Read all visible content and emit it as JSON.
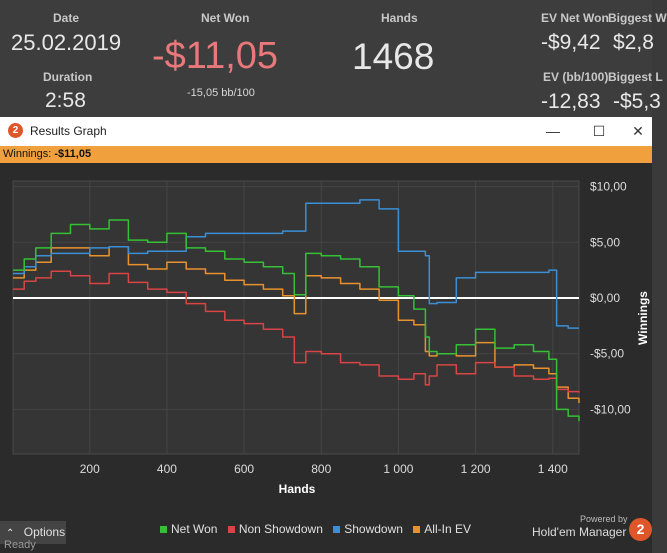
{
  "stats": {
    "date_label": "Date",
    "date_value": "25.02.2019",
    "duration_label": "Duration",
    "duration_value": "2:58",
    "netwon_label": "Net Won",
    "netwon_value": "-$11,05",
    "netwon_sub": "-15,05 bb/100",
    "hands_label": "Hands",
    "hands_value": "1468",
    "evnet_label": "EV Net Won",
    "evnet_value": "-$9,42",
    "evbb_label": "EV (bb/100)",
    "evbb_value": "-12,83",
    "biggest_win_label": "Biggest W",
    "biggest_win_value": "$2,8",
    "biggest_loss_label": "Biggest L",
    "biggest_loss_value": "-$5,3"
  },
  "window": {
    "title": "Results Graph",
    "minimize": "—",
    "maximize": "☐",
    "close": "✕",
    "winnings_label": "Winnings:",
    "winnings_value": "-$11,05"
  },
  "colors": {
    "net_won": "#35c035",
    "non_showdown": "#d94545",
    "showdown": "#3a8fd6",
    "all_in_ev": "#e8922e",
    "bar": "#f0a03c",
    "netwon_value": "#e8787a"
  },
  "chart_data": {
    "type": "line",
    "xlabel": "Hands",
    "ylabel": "Winnings",
    "xlim": [
      1,
      1468
    ],
    "ylim": [
      -14,
      10.5
    ],
    "x_ticks": [
      200,
      400,
      600,
      800,
      1000,
      1200,
      1400
    ],
    "x_tick_labels": [
      "200",
      "400",
      "600",
      "800",
      "1 000",
      "1 200",
      "1 400"
    ],
    "y_ticks": [
      10,
      5,
      0,
      -5,
      -10
    ],
    "y_tick_labels": [
      "$10,00",
      "$5,00",
      "$0,00",
      "-$5,00",
      "-$10,00"
    ],
    "grid": true,
    "legend": "bottom",
    "x": [
      0,
      30,
      60,
      100,
      150,
      200,
      250,
      300,
      350,
      400,
      450,
      500,
      550,
      600,
      650,
      700,
      730,
      760,
      800,
      850,
      900,
      950,
      1000,
      1040,
      1070,
      1080,
      1100,
      1150,
      1200,
      1250,
      1300,
      1350,
      1390,
      1410,
      1440,
      1468
    ],
    "series": [
      {
        "name": "Net Won",
        "color": "#35c035",
        "values": [
          2.5,
          3.5,
          4.5,
          5.8,
          6.6,
          6.2,
          7.0,
          5.2,
          5.0,
          5.8,
          4.5,
          4.2,
          3.5,
          3.2,
          2.8,
          2.2,
          0.3,
          4.0,
          3.8,
          3.5,
          2.8,
          1.0,
          0.2,
          -1.0,
          -3.5,
          -4.8,
          -5.0,
          -4.2,
          -2.8,
          -4.5,
          -4.2,
          -4.8,
          -5.5,
          -10.0,
          -10.6,
          -11.05
        ]
      },
      {
        "name": "Non Showdown",
        "color": "#d94545",
        "values": [
          0.8,
          1.5,
          1.8,
          2.4,
          2.0,
          1.3,
          2.2,
          1.4,
          0.8,
          0.5,
          -0.5,
          -1.2,
          -2.0,
          -2.3,
          -2.8,
          -3.5,
          -5.8,
          -4.8,
          -5.0,
          -5.8,
          -6.0,
          -7.0,
          -7.3,
          -6.8,
          -7.8,
          -7.0,
          -6.0,
          -6.8,
          -5.8,
          -6.2,
          -7.0,
          -7.3,
          -7.2,
          -8.2,
          -8.4,
          -8.5
        ]
      },
      {
        "name": "Showdown",
        "color": "#3a8fd6",
        "values": [
          2.2,
          2.8,
          3.8,
          4.0,
          4.0,
          4.5,
          4.6,
          4.0,
          4.2,
          4.2,
          5.5,
          5.8,
          5.8,
          5.8,
          5.8,
          6.0,
          6.0,
          8.5,
          8.5,
          8.5,
          8.8,
          8.0,
          4.2,
          4.2,
          3.8,
          -0.5,
          -0.4,
          1.8,
          2.3,
          2.3,
          2.3,
          2.3,
          2.5,
          -2.5,
          -2.7,
          -2.7
        ]
      },
      {
        "name": "All-In EV",
        "color": "#e8922e",
        "values": [
          1.8,
          2.5,
          3.2,
          4.5,
          4.5,
          3.8,
          4.6,
          3.0,
          2.6,
          3.2,
          2.6,
          2.2,
          1.6,
          1.2,
          0.8,
          0.2,
          -1.4,
          2.0,
          1.8,
          1.3,
          0.8,
          -0.2,
          -2.0,
          -2.4,
          -4.8,
          -5.2,
          -5.0,
          -5.2,
          -4.0,
          -6.2,
          -6.0,
          -6.3,
          -6.8,
          -8.0,
          -9.0,
          -9.42
        ]
      }
    ]
  },
  "legend": [
    {
      "label": "Net Won",
      "color": "#35c035"
    },
    {
      "label": "Non Showdown",
      "color": "#d94545"
    },
    {
      "label": "Showdown",
      "color": "#3a8fd6"
    },
    {
      "label": "All-In EV",
      "color": "#e8922e"
    }
  ],
  "footer": {
    "options_label": "Options",
    "options_icon": "chevron-up-icon",
    "powered_by": "Powered by",
    "brand": "Hold'em Manager",
    "brand_icon": "2",
    "status": "Ready"
  }
}
